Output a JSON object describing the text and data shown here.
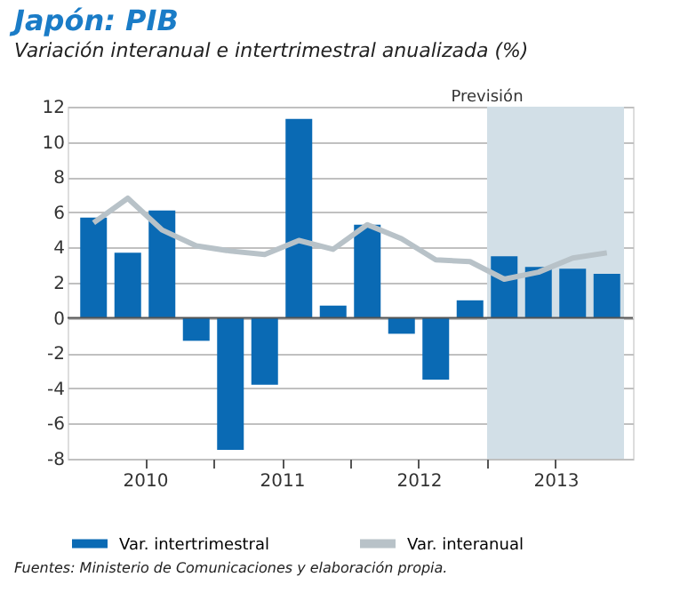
{
  "chart_data": {
    "type": "bar",
    "title": "Japón: PIB",
    "subtitle": "Variación interanual e intertrimestral anualizada (%)",
    "x": [
      2010.125,
      2010.375,
      2010.625,
      2010.875,
      2011.125,
      2011.375,
      2011.625,
      2011.875,
      2012.125,
      2012.375,
      2012.625,
      2012.875,
      2013.125,
      2013.375,
      2013.625,
      2013.875
    ],
    "series": [
      {
        "name": "Var. intertrimestral",
        "type": "bar",
        "color": "#0a6ab4",
        "values": [
          5.7,
          3.7,
          6.1,
          -1.3,
          -7.5,
          -3.8,
          11.3,
          0.7,
          5.3,
          -0.9,
          -3.5,
          1.0,
          3.5,
          2.9,
          2.8,
          2.5
        ]
      },
      {
        "name": "Var. interanual",
        "type": "line",
        "color": "#b8c2c8",
        "values": [
          5.4,
          6.8,
          5.0,
          4.1,
          3.8,
          3.6,
          4.4,
          3.9,
          5.3,
          4.5,
          3.3,
          3.2,
          2.2,
          2.6,
          3.4,
          3.7
        ]
      }
    ],
    "xlim": [
      2010,
      2014
    ],
    "xticks": [
      {
        "value": 2010.5,
        "label": "2010"
      },
      {
        "value": 2011,
        "label": null
      },
      {
        "value": 2011.5,
        "label": "2011"
      },
      {
        "value": 2012,
        "label": null
      },
      {
        "value": 2012.5,
        "label": "2012"
      },
      {
        "value": 2013,
        "label": null
      },
      {
        "value": 2013.5,
        "label": "2013"
      }
    ],
    "ylim": [
      -8,
      12
    ],
    "yticks": [
      -8,
      -6,
      -4,
      -2,
      0,
      2,
      4,
      6,
      8,
      10,
      12
    ],
    "bands": [
      {
        "axis": "x",
        "from": 2013,
        "to": 2014,
        "label": "Previsión",
        "color": "#d2dfe7"
      }
    ],
    "grid": "y",
    "legend": "bottom",
    "annotations": [
      "Fuentes: Ministerio de Comunicaciones y elaboración propia."
    ]
  }
}
